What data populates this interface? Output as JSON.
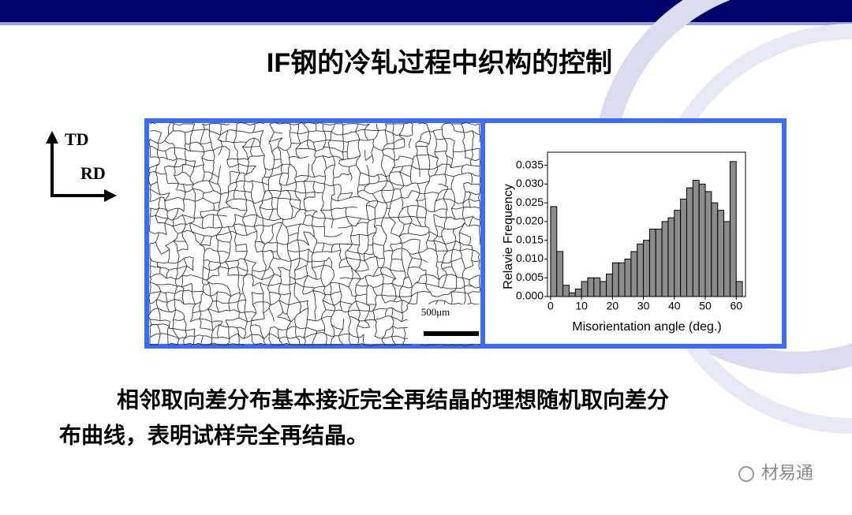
{
  "header": {
    "title": "IF钢的冷轧过程中织构的控制"
  },
  "axes_icon": {
    "td": "TD",
    "rd": "RD"
  },
  "micrograph": {
    "scale_label": "500μm"
  },
  "chart_data": {
    "type": "histogram",
    "xlabel": "Misorientation angle (deg.)",
    "ylabel": "Relavie Frequency",
    "bins": [
      0,
      2,
      4,
      6,
      8,
      10,
      12,
      14,
      16,
      18,
      20,
      22,
      24,
      26,
      28,
      30,
      32,
      34,
      36,
      38,
      40,
      42,
      44,
      46,
      48,
      50,
      52,
      54,
      56,
      58,
      60,
      62
    ],
    "values": [
      0.024,
      0.012,
      0.003,
      0.001,
      0.002,
      0.004,
      0.005,
      0.005,
      0.004,
      0.006,
      0.009,
      0.009,
      0.01,
      0.012,
      0.014,
      0.015,
      0.018,
      0.018,
      0.02,
      0.021,
      0.023,
      0.026,
      0.029,
      0.031,
      0.03,
      0.028,
      0.025,
      0.023,
      0.02,
      0.036,
      0.004
    ],
    "color": "#8c8c8c",
    "xlim": [
      -1,
      63
    ],
    "xticks": [
      0,
      10,
      20,
      30,
      40,
      50,
      60
    ],
    "ylim": [
      0,
      0.0385
    ],
    "yticks": [
      {
        "value": 0,
        "label": "0.000"
      },
      {
        "value": 0.005,
        "label": "0.005"
      },
      {
        "value": 0.01,
        "label": "0.010"
      },
      {
        "value": 0.015,
        "label": "0.015"
      },
      {
        "value": 0.02,
        "label": "0.020"
      },
      {
        "value": 0.025,
        "label": "0.025"
      },
      {
        "value": 0.03,
        "label": "0.030"
      },
      {
        "value": 0.035,
        "label": "0.035"
      }
    ]
  },
  "body": {
    "lines": [
      "相邻取向差分布基本接近完全再结晶的理想随机取向差分",
      "布曲线，表明试样完全再结晶。"
    ]
  },
  "watermark": "材易通"
}
